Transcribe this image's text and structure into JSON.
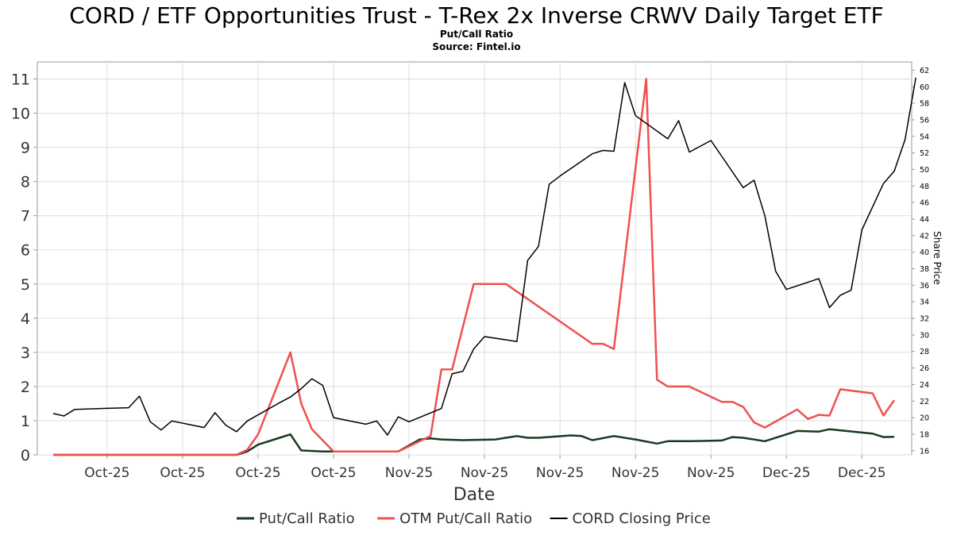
{
  "chart_data": {
    "type": "line",
    "title": "CORD / ETF Opportunities Trust - T-Rex 2x Inverse CRWV Daily Target ETF",
    "subtitle": "Put/Call Ratio",
    "source": "Source: Fintel.io",
    "xlabel": "Date",
    "ylabel_right": "Share Price",
    "ylim_left": [
      0,
      11.5
    ],
    "ylim_right": [
      15.5,
      63
    ],
    "xlim": [
      0,
      78
    ],
    "grid": true,
    "legend_placement": "bottom-center",
    "left_ticks": [
      0,
      1,
      2,
      3,
      4,
      5,
      6,
      7,
      8,
      9,
      10,
      11
    ],
    "right_ticks": [
      16,
      18,
      20,
      22,
      24,
      26,
      28,
      30,
      32,
      34,
      36,
      38,
      40,
      42,
      44,
      46,
      48,
      50,
      52,
      54,
      56,
      58,
      60,
      62
    ],
    "x_ticks": [
      {
        "x": 5,
        "label": "Oct-25"
      },
      {
        "x": 12,
        "label": "Oct-25"
      },
      {
        "x": 19,
        "label": "Oct-25"
      },
      {
        "x": 26,
        "label": "Oct-25"
      },
      {
        "x": 33,
        "label": "Nov-25"
      },
      {
        "x": 40,
        "label": "Nov-25"
      },
      {
        "x": 47,
        "label": "Nov-25"
      },
      {
        "x": 54,
        "label": "Nov-25"
      },
      {
        "x": 61,
        "label": "Nov-25"
      },
      {
        "x": 68,
        "label": "Dec-25"
      },
      {
        "x": 75,
        "label": "Dec-25"
      }
    ],
    "series": [
      {
        "name": "Put/Call Ratio",
        "axis": "left",
        "color": "#1a3a1f",
        "width": 2.5,
        "points": [
          [
            0,
            0
          ],
          [
            8,
            0
          ],
          [
            14,
            0
          ],
          [
            17,
            0
          ],
          [
            18,
            0.1
          ],
          [
            19,
            0.3
          ],
          [
            21,
            0.5
          ],
          [
            22,
            0.6
          ],
          [
            23,
            0.13
          ],
          [
            25,
            0.1
          ],
          [
            27,
            0.1
          ],
          [
            29,
            0.1
          ],
          [
            32,
            0.1
          ],
          [
            34,
            0.45
          ],
          [
            35,
            0.48
          ],
          [
            36,
            0.45
          ],
          [
            38,
            0.43
          ],
          [
            41,
            0.45
          ],
          [
            43,
            0.55
          ],
          [
            44,
            0.5
          ],
          [
            45,
            0.5
          ],
          [
            48,
            0.57
          ],
          [
            49,
            0.55
          ],
          [
            50,
            0.43
          ],
          [
            52,
            0.55
          ],
          [
            54,
            0.45
          ],
          [
            56,
            0.33
          ],
          [
            57,
            0.4
          ],
          [
            59,
            0.4
          ],
          [
            62,
            0.42
          ],
          [
            63,
            0.52
          ],
          [
            64,
            0.5
          ],
          [
            66,
            0.4
          ],
          [
            68,
            0.6
          ],
          [
            69,
            0.7
          ],
          [
            71,
            0.68
          ],
          [
            72,
            0.75
          ],
          [
            76,
            0.62
          ],
          [
            77,
            0.52
          ],
          [
            78,
            0.53
          ]
        ]
      },
      {
        "name": "OTM Put/Call Ratio",
        "axis": "left",
        "color": "#f05050",
        "width": 2.5,
        "points": [
          [
            0,
            0
          ],
          [
            17,
            0
          ],
          [
            18,
            0.15
          ],
          [
            19,
            0.6
          ],
          [
            22,
            3.0
          ],
          [
            23,
            1.5
          ],
          [
            24,
            0.75
          ],
          [
            26,
            0.1
          ],
          [
            29,
            0.1
          ],
          [
            32,
            0.1
          ],
          [
            35,
            0.55
          ],
          [
            36,
            2.5
          ],
          [
            37,
            2.5
          ],
          [
            39,
            5.0
          ],
          [
            42,
            5.0
          ],
          [
            50,
            3.25
          ],
          [
            51,
            3.25
          ],
          [
            52,
            3.1
          ],
          [
            55,
            11.0
          ],
          [
            56,
            2.2
          ],
          [
            57,
            2.0
          ],
          [
            59,
            2.0
          ],
          [
            62,
            1.55
          ],
          [
            63,
            1.55
          ],
          [
            64,
            1.4
          ],
          [
            65,
            0.95
          ],
          [
            66,
            0.8
          ],
          [
            69,
            1.33
          ],
          [
            70,
            1.05
          ],
          [
            71,
            1.17
          ],
          [
            72,
            1.15
          ],
          [
            73,
            1.92
          ],
          [
            76,
            1.8
          ],
          [
            77,
            1.15
          ],
          [
            78,
            1.6
          ]
        ]
      },
      {
        "name": "CORD Closing Price",
        "axis": "right",
        "color": "#000000",
        "width": 1.5,
        "points": [
          [
            0,
            20.5
          ],
          [
            1,
            20.2
          ],
          [
            2,
            21.0
          ],
          [
            7,
            21.2
          ],
          [
            8,
            22.6
          ],
          [
            9,
            19.5
          ],
          [
            10,
            18.5
          ],
          [
            11,
            19.6
          ],
          [
            14,
            18.8
          ],
          [
            15,
            20.6
          ],
          [
            16,
            19.1
          ],
          [
            17,
            18.3
          ],
          [
            18,
            19.6
          ],
          [
            21,
            21.8
          ],
          [
            22,
            22.5
          ],
          [
            23,
            23.5
          ],
          [
            24,
            24.7
          ],
          [
            25,
            23.9
          ],
          [
            26,
            20.0
          ],
          [
            29,
            19.2
          ],
          [
            30,
            19.6
          ],
          [
            31,
            17.9
          ],
          [
            32,
            20.1
          ],
          [
            33,
            19.5
          ],
          [
            36,
            21.1
          ],
          [
            37,
            25.3
          ],
          [
            38,
            25.6
          ],
          [
            39,
            28.3
          ],
          [
            40,
            29.8
          ],
          [
            43,
            29.2
          ],
          [
            44,
            39.0
          ],
          [
            45,
            40.7
          ],
          [
            46,
            48.2
          ],
          [
            47,
            49.2
          ],
          [
            50,
            51.9
          ],
          [
            51,
            52.3
          ],
          [
            52,
            52.2
          ],
          [
            53,
            60.5
          ],
          [
            54,
            56.5
          ],
          [
            57,
            53.7
          ],
          [
            58,
            55.9
          ],
          [
            59,
            52.1
          ],
          [
            61,
            53.5
          ],
          [
            64,
            47.8
          ],
          [
            65,
            48.7
          ],
          [
            66,
            44.4
          ],
          [
            67,
            37.7
          ],
          [
            68,
            35.5
          ],
          [
            71,
            36.8
          ],
          [
            72,
            33.3
          ],
          [
            73,
            34.8
          ],
          [
            74,
            35.4
          ],
          [
            75,
            42.7
          ],
          [
            77,
            48.3
          ],
          [
            78,
            49.8
          ],
          [
            79,
            53.6
          ],
          [
            80,
            61.1
          ]
        ]
      }
    ]
  }
}
